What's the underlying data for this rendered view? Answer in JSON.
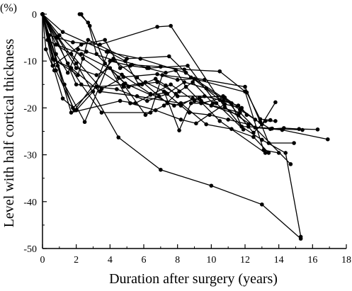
{
  "chart_data": {
    "type": "line",
    "ylabel": "Level with half cortical thickness",
    "xlabel": "Duration after surgery (years)",
    "yunit": "(%)",
    "xlim": [
      0,
      18
    ],
    "ylim": [
      -50,
      0
    ],
    "xticks": [
      0,
      2,
      4,
      6,
      8,
      10,
      12,
      14,
      16,
      18
    ],
    "yticks": [
      0,
      -10,
      -20,
      -30,
      -40,
      -50
    ],
    "colors": {
      "line": "#000000",
      "marker": "#000000",
      "axis": "#000000"
    },
    "series": [
      {
        "x": [
          0,
          2.0,
          4.5,
          7.0,
          10.0,
          13.0,
          15.3
        ],
        "y": [
          0,
          -10.5,
          -26.3,
          -33.2,
          -36.6,
          -40.6,
          -47.9
        ]
      },
      {
        "x": [
          0,
          0.4,
          1.8,
          3.4,
          6.8,
          7.6,
          10.8,
          12.6,
          14.2,
          16.9
        ],
        "y": [
          0,
          -4.5,
          -6.0,
          -6.5,
          -2.7,
          -2.5,
          -19.9,
          -24.2,
          -24.7,
          -26.7
        ]
      },
      {
        "x": [
          0,
          1.2,
          3.8,
          5.8,
          8.5,
          10.5,
          11.8,
          13.0,
          14.4,
          15.3
        ],
        "y": [
          0,
          -3.8,
          -8.0,
          -9.5,
          -12.5,
          -18.3,
          -24.0,
          -26.8,
          -29.6,
          -47.5
        ]
      },
      {
        "x": [
          0,
          0.7,
          1.7,
          3.4,
          5.6,
          8.2,
          9.7,
          11.2,
          12.5,
          13.4
        ],
        "y": [
          0,
          -9.8,
          -11.5,
          -16.5,
          -17.5,
          -19.0,
          -23.5,
          -24.5,
          -26.2,
          -29.6
        ]
      },
      {
        "x": [
          0,
          0.8,
          2.3,
          4.7,
          6.4,
          7.8,
          9.3,
          10.7,
          13.0,
          13.8
        ],
        "y": [
          0,
          -6.5,
          -8.5,
          -12.9,
          -17.0,
          -19.5,
          -17.8,
          -17.5,
          -23.5,
          -18.8
        ]
      },
      {
        "x": [
          0,
          1.7,
          4.6,
          5.5,
          7.6,
          9.0,
          11.7,
          14.7
        ],
        "y": [
          0,
          -21.0,
          -18.5,
          -19.0,
          -15.0,
          -18.5,
          -21.0,
          -32.0
        ]
      },
      {
        "x": [
          0,
          0.8,
          1.9,
          4.2,
          6.3,
          8.6,
          10.3,
          11.9
        ],
        "y": [
          0,
          -12.0,
          -20.5,
          -9.5,
          -11.5,
          -11.0,
          -19.0,
          -24.6
        ]
      },
      {
        "x": [
          0,
          1.5,
          2.3,
          3.5,
          6.4,
          7.1,
          9.0,
          11.2,
          11.8,
          12.2,
          13.6,
          15.4
        ],
        "y": [
          0,
          -10.5,
          -15.0,
          -21.0,
          -21.0,
          -13.0,
          -13.8,
          -19.0,
          -24.0,
          -24.0,
          -24.4,
          -24.7
        ]
      },
      {
        "x": [
          0,
          1.0,
          2.4,
          4.8,
          6.1,
          7.2,
          8.1,
          8.8,
          9.4,
          10.8,
          12.5,
          13.2,
          13.8
        ],
        "y": [
          0,
          -4.5,
          -9.5,
          -15.5,
          -14.5,
          -16.5,
          -24.8,
          -19.0,
          -19.0,
          -17.8,
          -25.3,
          -22.8,
          -22.8
        ]
      },
      {
        "x": [
          0,
          0.6,
          2.1,
          2.7,
          5.0,
          7.5,
          8.8,
          9.6,
          12.0,
          12.9,
          13.4,
          14.9
        ],
        "y": [
          0,
          -9.5,
          -13.0,
          -5.5,
          -9.5,
          -9.0,
          -13.5,
          -14.0,
          -15.5,
          -23.0,
          -27.5,
          -27.5
        ]
      },
      {
        "x": [
          0,
          0.8,
          2.0,
          4.4,
          6.2,
          7.4,
          8.4,
          9.7,
          11.7,
          12.6,
          13.5,
          14.3,
          15.2,
          16.3
        ],
        "y": [
          0,
          -5.0,
          -15.0,
          -16.0,
          -18.5,
          -17.0,
          -14.5,
          -15.8,
          -20.4,
          -22.5,
          -24.5,
          -24.3,
          -24.5,
          -24.6
        ]
      },
      {
        "x": [
          0,
          1.3,
          2.5,
          4.0,
          5.2,
          6.2,
          7.3,
          7.9,
          8.5,
          10.5,
          13.2
        ],
        "y": [
          0,
          -15.0,
          -23.0,
          -10.0,
          -11.0,
          -11.5,
          -12.5,
          -12.0,
          -15.5,
          -22.8,
          -29.6
        ]
      },
      {
        "x": [
          0,
          0.3,
          1.7,
          3.5,
          4.8,
          6.8,
          8.0,
          9.0,
          12.1,
          12.9,
          13.5
        ],
        "y": [
          0,
          -5.5,
          -8.5,
          -16.0,
          -13.4,
          -12.8,
          -14.0,
          -13.8,
          -16.7,
          -22.4,
          -22.6
        ]
      },
      {
        "x": [
          0,
          0.2,
          0.7,
          1.2,
          2.0,
          3.0,
          3.9,
          4.9,
          5.7,
          6.8,
          7.9
        ],
        "y": [
          0,
          -7.5,
          -12.0,
          -18.0,
          -20.5,
          -16.5,
          -8.0,
          -10.0,
          -15.0,
          -14.5,
          -17.0
        ]
      },
      {
        "x": [
          0,
          0.4,
          0.8,
          1.5,
          2.1,
          2.6,
          4.2,
          5.6,
          6.9,
          7.4,
          8.2,
          8.9,
          9.4,
          10.0,
          11.6
        ],
        "y": [
          0,
          -2.5,
          -8.5,
          -12.5,
          -7.5,
          -8.0,
          -9.8,
          -13.5,
          -17.5,
          -19.0,
          -19.5,
          -18.0,
          -18.5,
          -19.5,
          -21.5
        ]
      },
      {
        "x": [
          0,
          0.9,
          1.8,
          3.2,
          4.8,
          6.1,
          7.2,
          8.1,
          8.9,
          10.1
        ],
        "y": [
          0,
          -11.0,
          -20.0,
          -15.5,
          -15.0,
          -21.5,
          -19.5,
          -16.5,
          -14.5,
          -19.0
        ]
      },
      {
        "x": [
          0,
          0.6,
          2.3,
          3.7,
          4.6,
          5.3,
          7.0,
          8.4,
          10.5,
          12.0,
          13.1,
          14.0
        ],
        "y": [
          0,
          -11.0,
          -6.5,
          -5.5,
          -11.5,
          -10.8,
          -11.2,
          -11.8,
          -12.2,
          -16.5,
          -29.0,
          -29.6
        ]
      },
      {
        "x": [
          0,
          0.9,
          2.0,
          3.2,
          4.0,
          5.2,
          6.7,
          8.2,
          9.1,
          10.8,
          11.8,
          12.1
        ],
        "y": [
          0,
          -5.0,
          -11.5,
          -13.0,
          -11.5,
          -19.0,
          -20.5,
          -22.5,
          -23.3,
          -19.2,
          -20.0,
          -21.5
        ]
      },
      {
        "x": [
          2.2,
          2.7,
          3.2,
          4.5,
          5.1,
          5.9,
          6.7,
          7.3,
          8.0,
          9.6,
          10.7,
          11.6
        ],
        "y": [
          0,
          -1.8,
          -8.5,
          -13.5,
          -15.5,
          -15.0,
          -13.8,
          -15.2,
          -17.5,
          -17.5,
          -18.5,
          -19.5
        ]
      },
      {
        "x": [
          2.3,
          2.8,
          3.7,
          4.9,
          6.4,
          7.3,
          8.7,
          9.9,
          11.0,
          12.2
        ],
        "y": [
          0,
          -2.5,
          -10.5,
          -14.8,
          -17.2,
          -16.8,
          -21.0,
          -21.5,
          -22.5,
          -23.5
        ]
      }
    ]
  }
}
